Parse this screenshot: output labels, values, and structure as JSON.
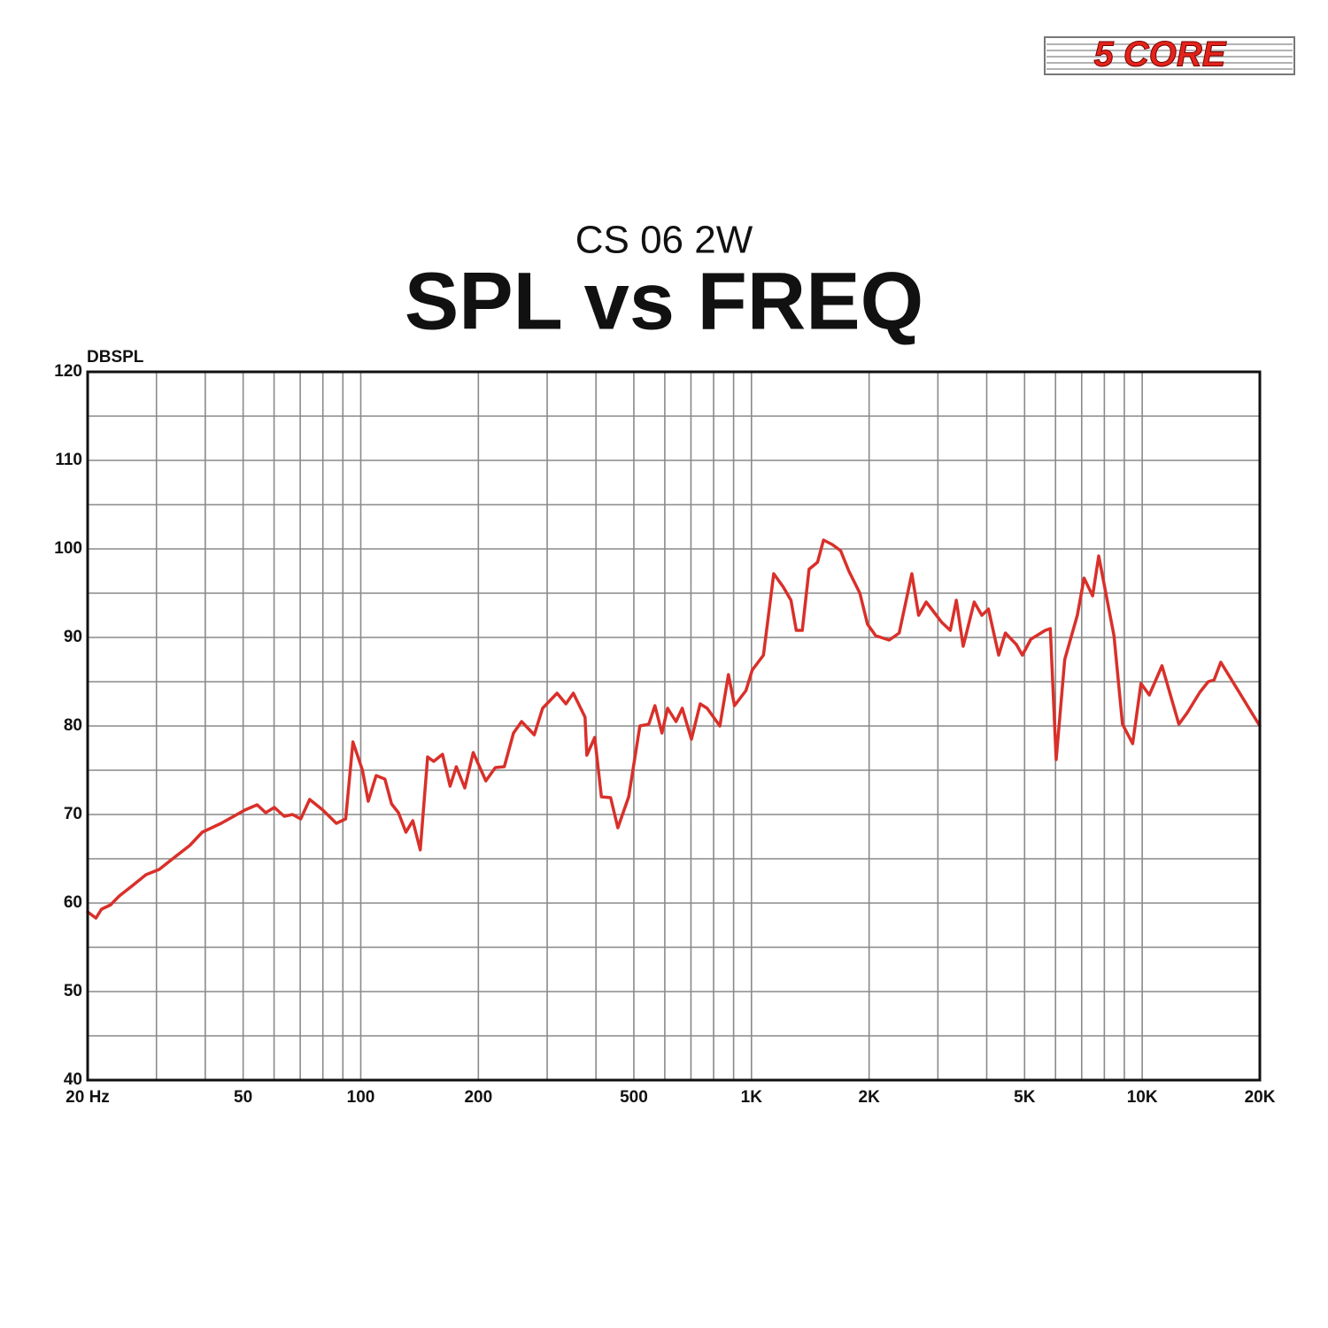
{
  "logo": "5 CORE",
  "chart_data": {
    "type": "line",
    "subtitle": "CS 06 2W",
    "title": "SPL vs FREQ",
    "y_label": "DBSPL",
    "xscale": "log",
    "grid": true,
    "xlim": [
      20,
      20000
    ],
    "ylim": [
      40,
      120
    ],
    "xticks": [
      {
        "value": 20,
        "label": "20 Hz"
      },
      50,
      100,
      200,
      500,
      {
        "value": 1000,
        "label": "1K"
      },
      {
        "value": 2000,
        "label": "2K"
      },
      {
        "value": 5000,
        "label": "5K"
      },
      {
        "value": 10000,
        "label": "10K"
      },
      {
        "value": 20000,
        "label": "20K"
      }
    ],
    "xminorticks": [
      30,
      40,
      60,
      70,
      80,
      90,
      300,
      400,
      600,
      700,
      800,
      900,
      3000,
      4000,
      6000,
      7000,
      8000,
      9000
    ],
    "yticks": [
      40,
      50,
      60,
      70,
      80,
      90,
      100,
      110,
      120
    ],
    "yminorticks": [
      45,
      55,
      65,
      75,
      85,
      95,
      105,
      115
    ],
    "series": [
      {
        "color": "#d9302a",
        "x": [
          20,
          21,
          21.7,
          22.9,
          24.1,
          26.1,
          28.2,
          30.5,
          33,
          36.5,
          39.3,
          43.9,
          50.5,
          54.3,
          57.1,
          60.1,
          63.7,
          66.9,
          70.2,
          74,
          80,
          86.6,
          91.5,
          95.5,
          101,
          104.5,
          109.5,
          115.3,
          119.9,
          124.9,
          130.5,
          135.9,
          142,
          148.3,
          153.7,
          161.9,
          169.3,
          175.6,
          184.6,
          194,
          209,
          221,
          233,
          246,
          258,
          278,
          292,
          318,
          335,
          350,
          375,
          379,
          397,
          413,
          436,
          455,
          485,
          518,
          546,
          566,
          590,
          610,
          641,
          665,
          702,
          739,
          770,
          830,
          873,
          905,
          968,
          1004,
          1073,
          1140,
          1206,
          1262,
          1302,
          1349,
          1404,
          1476,
          1529,
          1609,
          1691,
          1775,
          1894,
          1981,
          2079,
          2251,
          2388,
          2573,
          2678,
          2800,
          2915,
          3069,
          3227,
          3344,
          3482,
          3715,
          3887,
          4041,
          4292,
          4465,
          4764,
          4935,
          5188,
          5648,
          5818,
          6023,
          6334,
          6822,
          7100,
          7466,
          7739,
          8468,
          8903,
          9452,
          9928,
          10428,
          11236,
          12412,
          13044,
          14040,
          14755,
          15274,
          15891,
          20000
        ],
        "values": [
          59,
          58.3,
          59.3,
          59.8,
          60.8,
          62,
          63.2,
          63.8,
          65,
          66.5,
          68,
          69,
          70.5,
          71.1,
          70.2,
          70.8,
          69.8,
          70,
          69.5,
          71.7,
          70.5,
          69,
          69.5,
          78.2,
          75,
          71.5,
          74.4,
          74,
          71.2,
          70.2,
          68,
          69.3,
          66,
          76.5,
          76,
          76.8,
          73.2,
          75.4,
          73,
          77,
          73.8,
          75.3,
          75.4,
          79.2,
          80.5,
          79,
          82,
          83.7,
          82.5,
          83.7,
          81,
          76.7,
          78.7,
          72,
          71.9,
          68.5,
          72,
          80,
          80.2,
          82.3,
          79.2,
          82,
          80.5,
          82,
          78.5,
          82.5,
          82,
          80,
          85.8,
          82.3,
          84,
          86.3,
          88,
          97.2,
          95.7,
          94.2,
          90.8,
          90.8,
          97.7,
          98.5,
          101,
          100.5,
          99.8,
          97.5,
          95,
          91.5,
          90.2,
          89.7,
          90.5,
          97.2,
          92.5,
          94,
          93,
          91.7,
          90.8,
          94.2,
          89,
          94,
          92.5,
          93.2,
          88,
          90.5,
          89.2,
          88,
          89.8,
          90.8,
          91,
          76.2,
          87.5,
          92.5,
          96.7,
          94.7,
          99.2,
          90.2,
          80.2,
          78,
          84.8,
          83.5,
          86.8,
          80.2,
          81.5,
          83.8,
          85,
          85.2,
          87.2,
          80
        ]
      }
    ]
  }
}
